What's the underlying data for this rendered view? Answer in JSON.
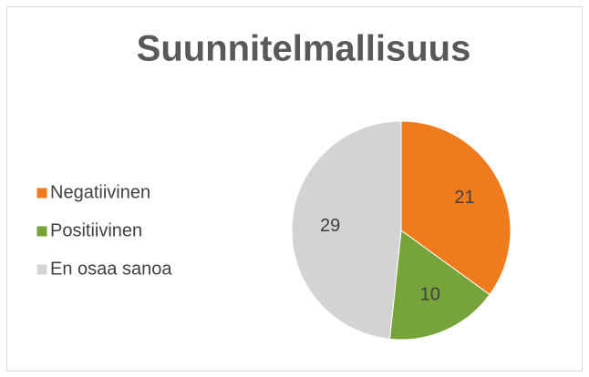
{
  "chart_data": {
    "type": "pie",
    "title": "Suunnitelmallisuus",
    "categories": [
      "Negatiivinen",
      "Positiivinen",
      "En osaa sanoa"
    ],
    "values": [
      21,
      10,
      29
    ],
    "colors": [
      "#f07b1c",
      "#77a33b",
      "#d3d3d3"
    ],
    "legend": "left"
  }
}
